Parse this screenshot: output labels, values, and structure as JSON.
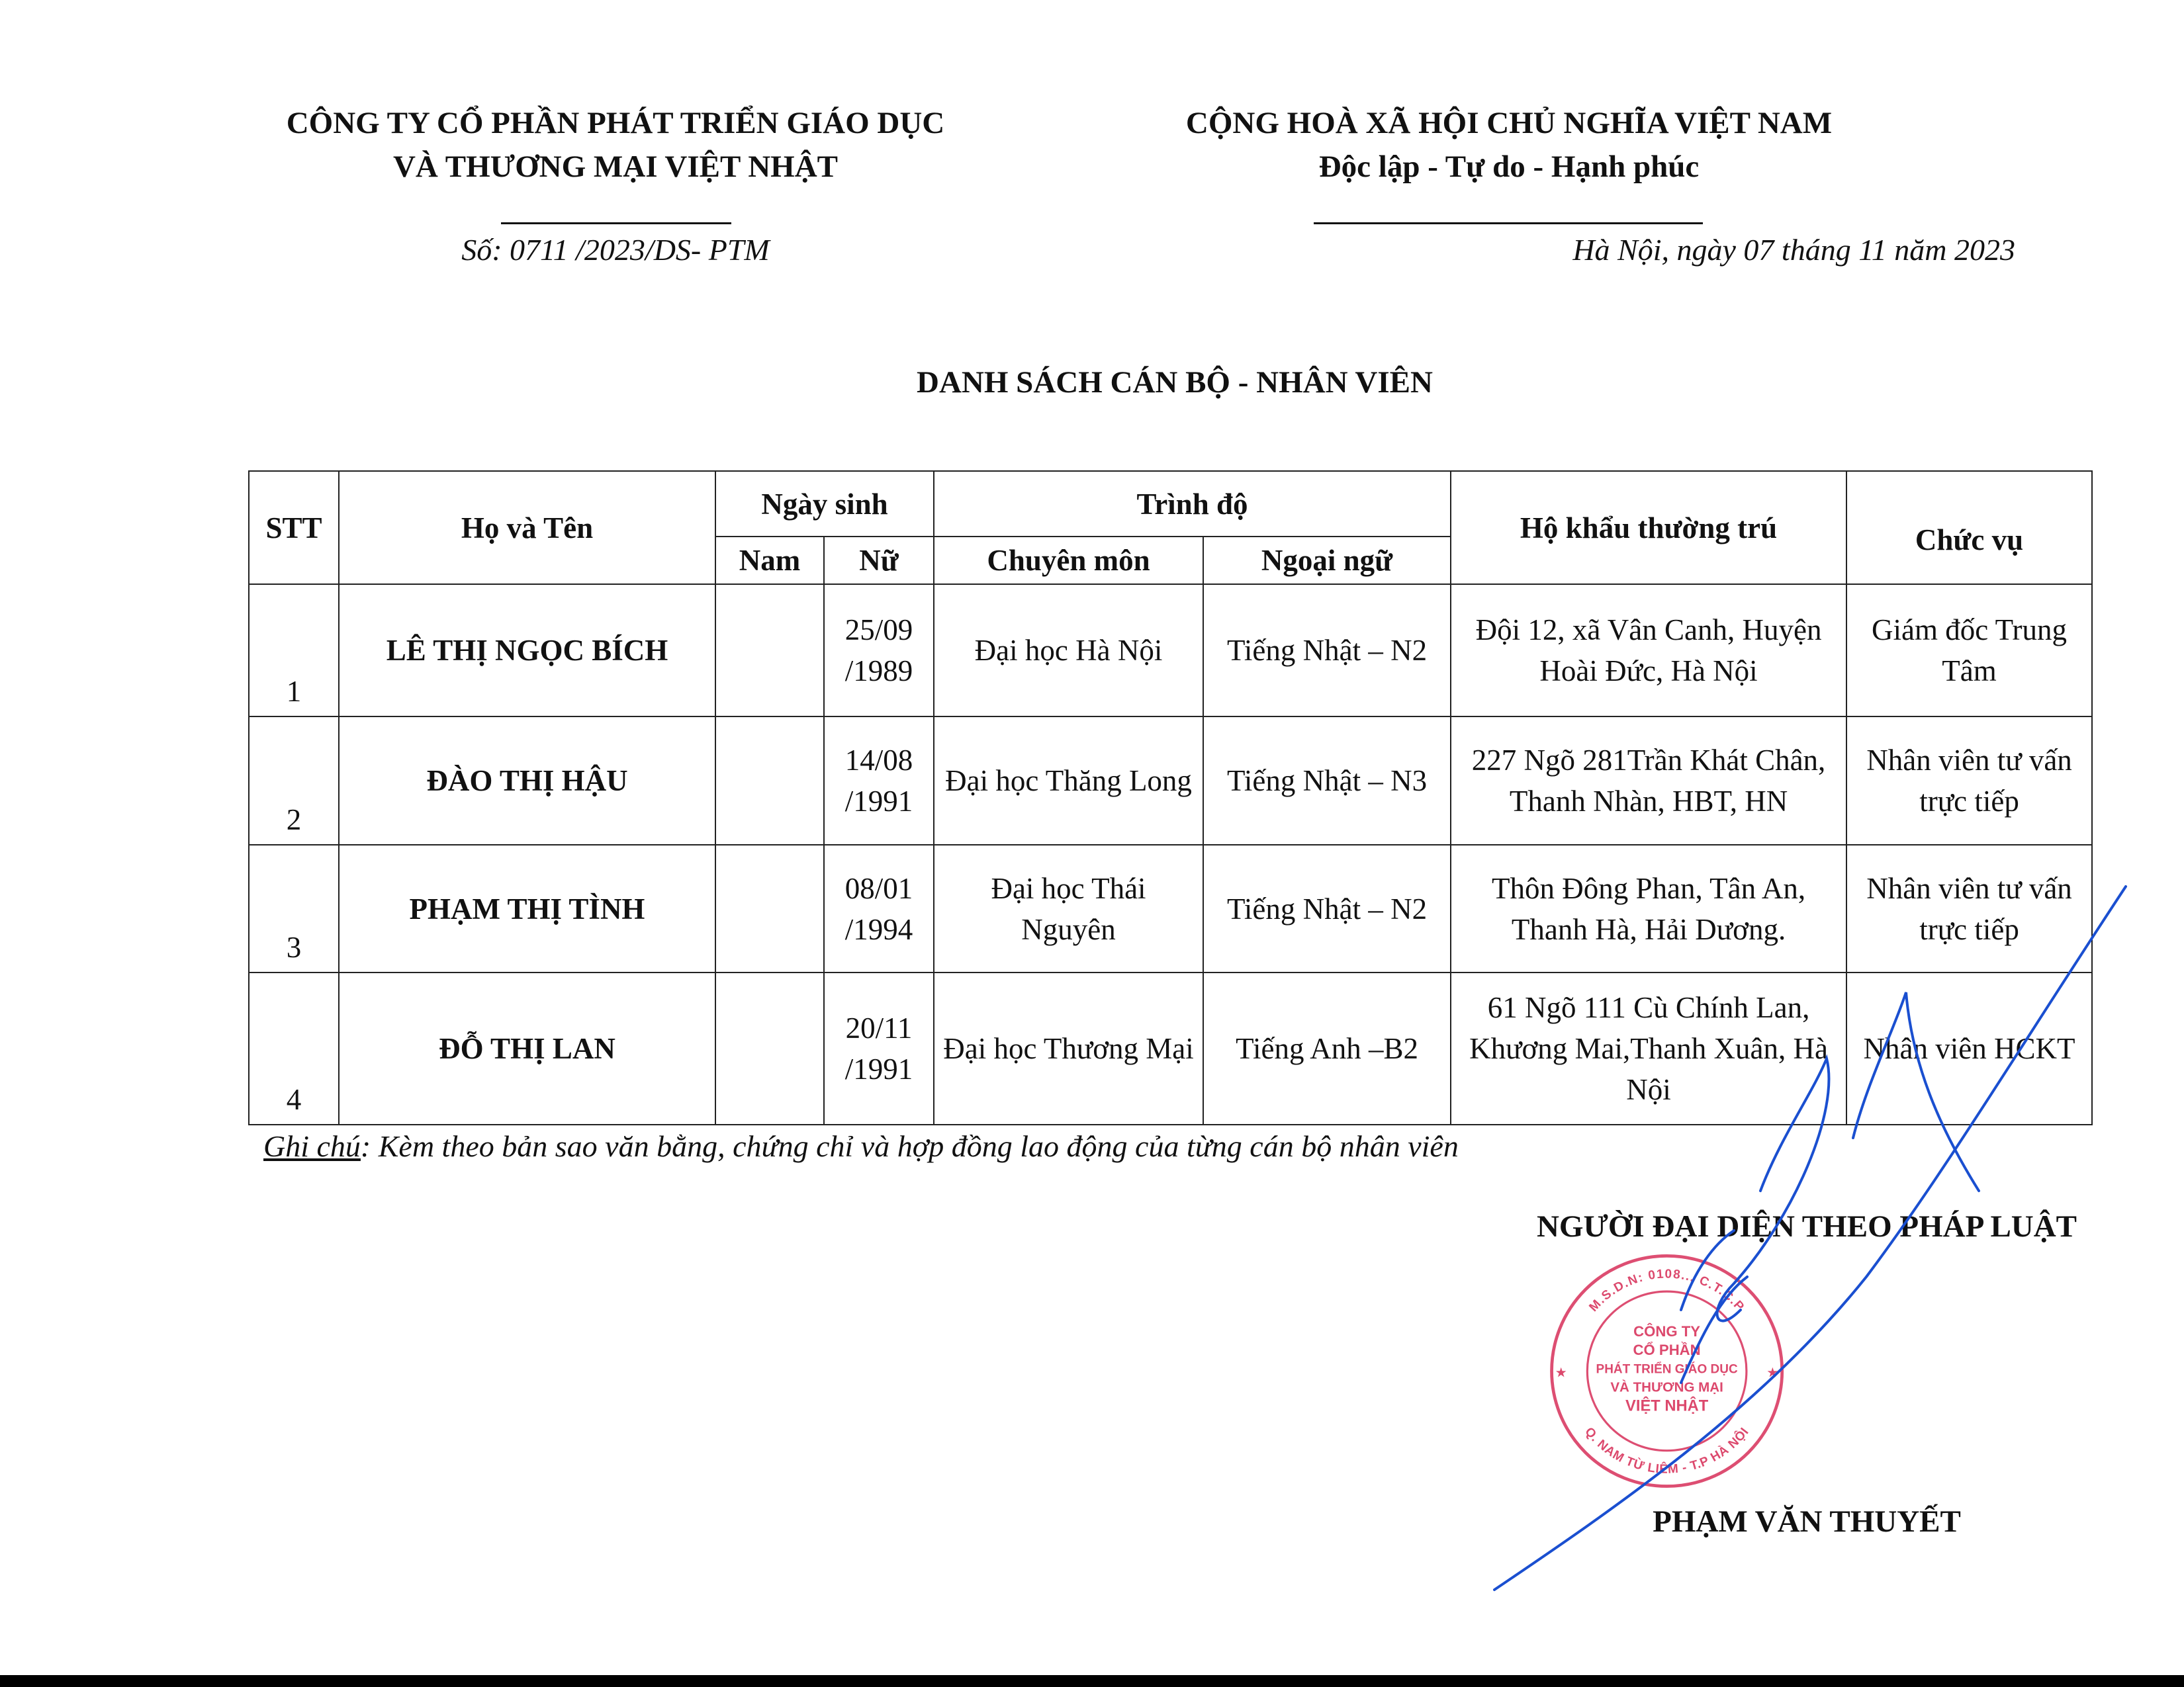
{
  "header_left": {
    "line1": "CÔNG TY CỔ PHẦN PHÁT TRIỂN GIÁO DỤC",
    "line2": "VÀ THƯƠNG MẠI VIỆT NHẬT",
    "doc_number": "Số: 0711 /2023/DS- PTM"
  },
  "header_right": {
    "line1": "CỘNG HOÀ XÃ HỘI CHỦ NGHĨA VIỆT NAM",
    "line2": "Độc lập - Tự do - Hạnh phúc",
    "date": "Hà Nội, ngày 07  tháng 11 năm 2023"
  },
  "title": "DANH SÁCH CÁN BỘ -  NHÂN VIÊN",
  "table": {
    "headers": {
      "stt": "STT",
      "name": "Họ và Tên",
      "dob": "Ngày sinh",
      "male": "Nam",
      "female": "Nữ",
      "level": "Trình độ",
      "major": "Chuyên môn",
      "language": "Ngoại ngữ",
      "address": "Hộ khẩu thường trú",
      "position": "Chức vụ"
    },
    "rows": [
      {
        "stt": "1",
        "name": "LÊ THỊ NGỌC BÍCH",
        "male": "",
        "female": "25/09 /1989",
        "major": "Đại học Hà Nội",
        "language": "Tiếng Nhật – N2",
        "address": "Đội 12, xã Vân Canh, Huyện Hoài Đức, Hà Nội",
        "position": "Giám đốc Trung Tâm"
      },
      {
        "stt": "2",
        "name": "ĐÀO THỊ HẬU",
        "male": "",
        "female": "14/08 /1991",
        "major": "Đại học Thăng Long",
        "language": "Tiếng Nhật – N3",
        "address": "227 Ngõ 281Trần Khát Chân, Thanh Nhàn, HBT, HN",
        "position": "Nhân viên tư vấn trực tiếp"
      },
      {
        "stt": "3",
        "name": "PHẠM THỊ TÌNH",
        "male": "",
        "female": "08/01 /1994",
        "major": "Đại học Thái Nguyên",
        "language": "Tiếng Nhật – N2",
        "address": "Thôn Đông Phan, Tân An, Thanh Hà, Hải Dương.",
        "position": "Nhân viên tư vấn trực tiếp"
      },
      {
        "stt": "4",
        "name": "ĐỖ THỊ LAN",
        "male": "",
        "female": "20/11 /1991",
        "major": "Đại học Thương Mại",
        "language": "Tiếng Anh –B2",
        "address": "61 Ngõ 111 Cù Chính Lan, Khương Mai,Thanh Xuân, Hà Nội",
        "position": "Nhân viên HCKT"
      }
    ]
  },
  "note": {
    "label": "Ghi chú",
    "text": ": Kèm theo bản sao văn bằng, chứng chỉ và hợp đồng lao động của từng cán bộ nhân viên"
  },
  "signature": {
    "role": "NGƯỜI ĐẠI DIỆN THEO PHÁP LUẬT",
    "name": "PHẠM VĂN THUYẾT"
  },
  "stamp": {
    "ring_text": "M.S.D.N: 0108... C.T.C.P",
    "ring_bottom": "Q. NAM TỪ LIÊM - T.P HÀ NỘI",
    "lines": [
      "CÔNG TY",
      "CỔ PHẦN",
      "PHÁT TRIỂN GIÁO DỤC",
      "VÀ THƯƠNG MẠI",
      "VIỆT NHẬT"
    ],
    "color": "#d8305a"
  },
  "colors": {
    "signature_ink": "#1a4fd0"
  }
}
